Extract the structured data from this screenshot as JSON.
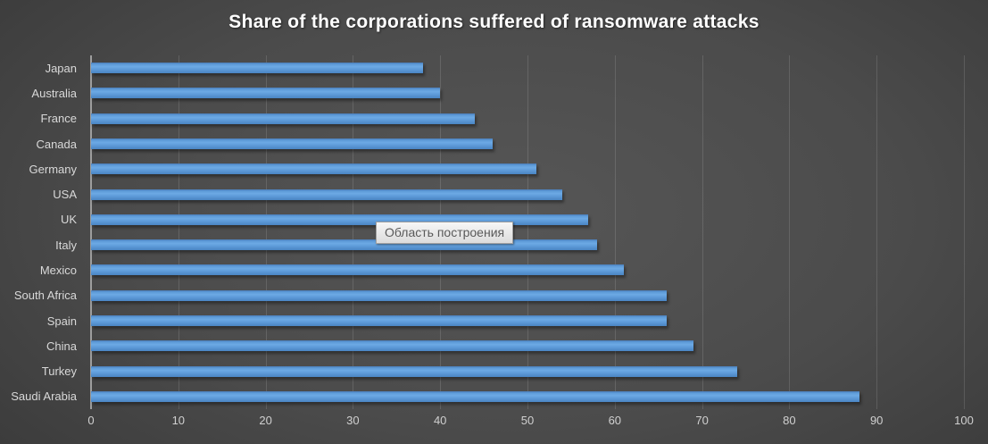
{
  "chart_data": {
    "type": "bar",
    "orientation": "horizontal",
    "title": "Share of the corporations suffered of ransomware attacks",
    "categories": [
      "Japan",
      "Australia",
      "France",
      "Canada",
      "Germany",
      "USA",
      "UK",
      "Italy",
      "Mexico",
      "South Africa",
      "Spain",
      "China",
      "Turkey",
      "Saudi Arabia"
    ],
    "values": [
      38,
      40,
      44,
      46,
      51,
      54,
      57,
      58,
      61,
      66,
      66,
      69,
      74,
      88
    ],
    "xlabel": "",
    "ylabel": "",
    "xlim": [
      0,
      100
    ],
    "x_ticks": [
      0,
      10,
      20,
      30,
      40,
      50,
      60,
      70,
      80,
      90,
      100
    ],
    "grid": true,
    "legend": false,
    "bar_color": "#5b9bd5",
    "background_color": "#454545",
    "text_color": "#d9d9d9",
    "title_color": "#ffffff"
  },
  "tooltip": {
    "text": "Область построения"
  }
}
